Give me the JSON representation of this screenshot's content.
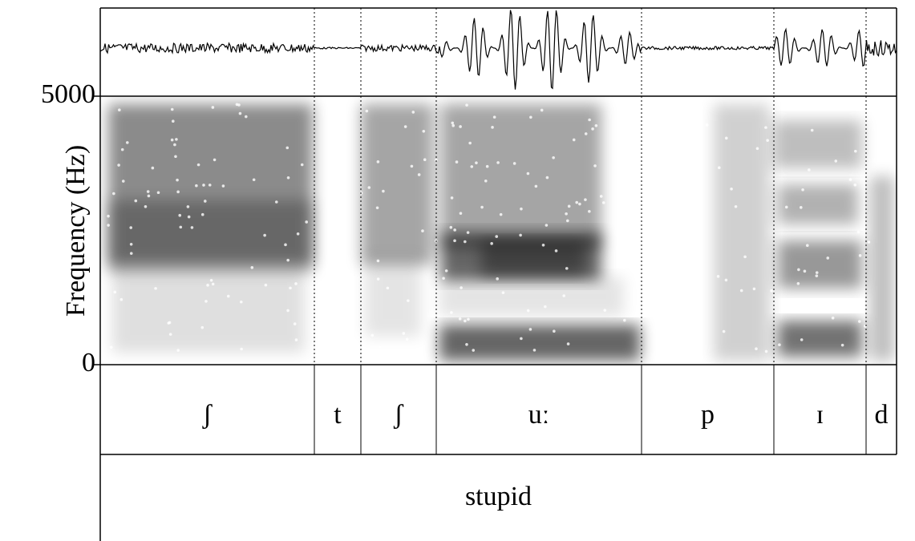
{
  "chart_data": {
    "type": "spectrogram",
    "y_label": "Frequency (Hz)",
    "ylim": [
      0,
      5000
    ],
    "yticks": [
      0,
      5000
    ],
    "tiers": [
      {
        "labels": [
          "ʃ",
          "t",
          "ʃ",
          "uː",
          "p",
          "ɪ",
          "d"
        ]
      },
      {
        "labels": [
          "stupid"
        ]
      }
    ]
  }
}
